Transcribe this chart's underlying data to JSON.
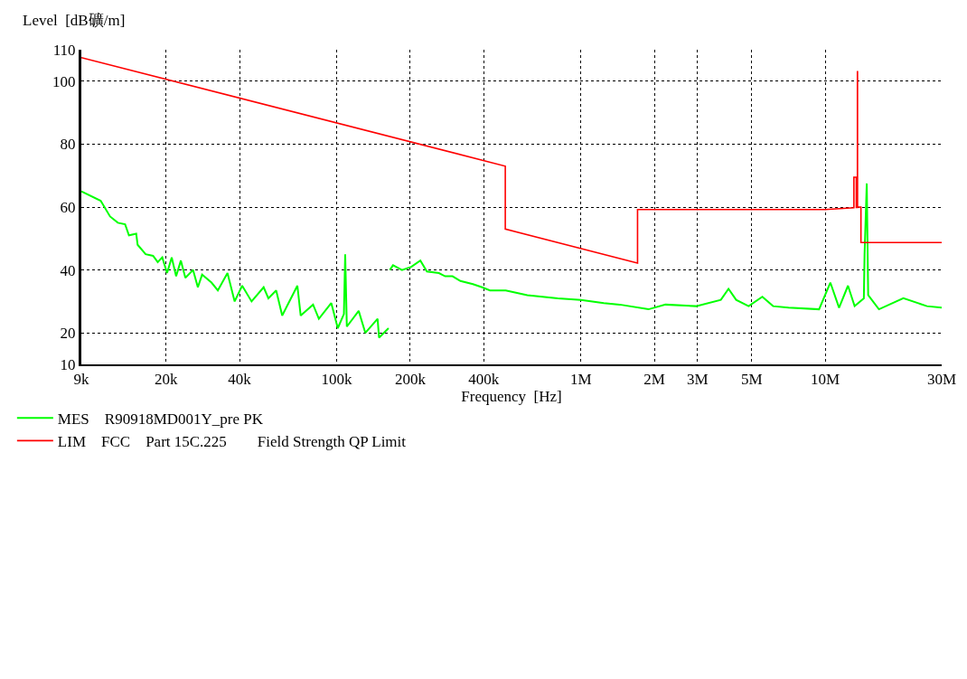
{
  "chart_data": {
    "type": "line",
    "ylabel": "Level  [dB礦/m]",
    "xlabel": "Frequency  [Hz]",
    "log": "x",
    "xlim": [
      9000,
      30000000
    ],
    "ylim": [
      10,
      110
    ],
    "xticks": [
      {
        "value": 9000,
        "label": "9k"
      },
      {
        "value": 20000,
        "label": "20k"
      },
      {
        "value": 40000,
        "label": "40k"
      },
      {
        "value": 100000,
        "label": "100k"
      },
      {
        "value": 200000,
        "label": "200k"
      },
      {
        "value": 400000,
        "label": "400k"
      },
      {
        "value": 1000000,
        "label": "1M"
      },
      {
        "value": 2000000,
        "label": "2M"
      },
      {
        "value": 3000000,
        "label": "3M"
      },
      {
        "value": 5000000,
        "label": "5M"
      },
      {
        "value": 10000000,
        "label": "10M"
      },
      {
        "value": 30000000,
        "label": "30M"
      }
    ],
    "yticks": [
      10,
      20,
      40,
      60,
      80,
      100,
      110
    ],
    "grid": true,
    "legend": "bottom",
    "marker": "none",
    "line_style": "solid",
    "series": [
      {
        "name": "MES    R90918MD001Y_pre PK",
        "color": "#00ff00",
        "x": [
          9000,
          10800,
          11800,
          12700,
          13600,
          14100,
          15100,
          15300,
          16500,
          17700,
          18500,
          19300,
          20200,
          21100,
          22000,
          23000,
          24000,
          25800,
          27000,
          28100,
          30700,
          32600,
          35700,
          38200,
          41000,
          44800,
          50200,
          52500,
          56500,
          59800,
          69000,
          71200,
          80000,
          84500,
          95000,
          101000,
          107000,
          108300,
          110000,
          123000,
          131000,
          147000,
          149000,
          163000,
          164000,
          165000,
          170000,
          185000,
          202000,
          220000,
          234000,
          262000,
          278000,
          298000,
          321000,
          361000,
          394000,
          424000,
          492000,
          603000,
          804000,
          1000000,
          1240000,
          1440000,
          1890000,
          2220000,
          2960000,
          3740000,
          4020000,
          4320000,
          4860000,
          5530000,
          6120000,
          7080000,
          9440000,
          10500000,
          11400000,
          12400000,
          13200000,
          14400000,
          14500000,
          14800000,
          15000000,
          16600000,
          20900000,
          26100000,
          30000000
        ],
        "values": [
          65,
          62,
          57,
          55,
          54.5,
          51,
          51.5,
          48,
          45,
          44.5,
          42.5,
          44,
          39,
          44,
          38,
          43,
          37.5,
          40,
          34.5,
          38.5,
          36,
          33.5,
          39,
          30,
          35,
          30,
          34.5,
          31,
          33.5,
          25.5,
          35,
          25.5,
          29,
          24.5,
          29.5,
          21.5,
          26,
          45,
          22,
          27,
          20,
          24.5,
          18.5,
          21.5,
          null,
          40,
          41.5,
          40,
          41,
          43,
          39.5,
          39,
          38,
          38,
          36.5,
          35.5,
          34.5,
          33.5,
          33.5,
          32,
          31,
          30.5,
          29.5,
          29,
          27.5,
          29,
          28.5,
          30.5,
          34,
          30.5,
          28.5,
          31.5,
          28.5,
          28,
          27.5,
          36,
          28,
          35,
          28.5,
          31,
          45,
          67.5,
          32,
          27.5,
          31,
          28.5,
          28
        ]
      },
      {
        "name": "LIM    FCC    Part 15C.225        Field Strength QP Limit",
        "color": "#ff0000",
        "x": [
          9000,
          490000,
          490000,
          1705000,
          1705000,
          10000000,
          13110000,
          13110000,
          13410000,
          13410000,
          13553000,
          13553000,
          13567000,
          13567000,
          14010000,
          14010000,
          30000000
        ],
        "values": [
          107.5,
          73,
          53,
          42.2,
          59.2,
          59.2,
          59.8,
          69.5,
          69.5,
          59.9,
          59.9,
          103,
          103,
          60,
          60,
          48.7,
          48.7
        ]
      }
    ]
  }
}
